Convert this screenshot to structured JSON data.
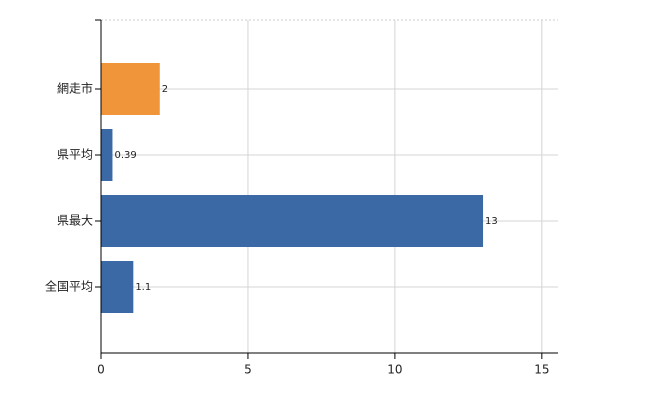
{
  "chart_data": {
    "type": "hbar",
    "categories": [
      "網走市",
      "県平均",
      "県最大",
      "全国平均"
    ],
    "values": [
      2,
      0.39,
      13,
      1.1
    ],
    "colors": [
      "#f0953a",
      "#3a69a6",
      "#3a69a6",
      "#3a69a6"
    ],
    "xlim": [
      0,
      15.55
    ],
    "xticks": [
      0,
      5,
      10,
      15
    ],
    "grid": true
  }
}
